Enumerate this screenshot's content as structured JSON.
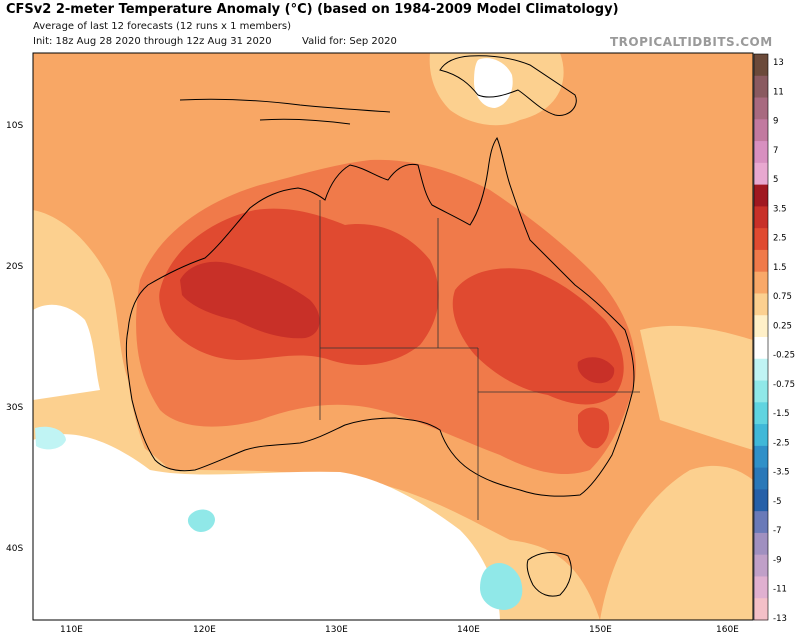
{
  "header": {
    "title": "CFSv2 2-meter Temperature Anomaly (°C) (based on 1984-2009 Model Climatology)",
    "subtitle": "Average of last 12 forecasts (12 runs x 1 members)",
    "init": "Init: 18z Aug 28 2020 through 12z Aug 31 2020",
    "valid": "Valid for: Sep 2020",
    "brand": "TROPICALTIDBITS.COM"
  },
  "axes": {
    "lat_labels": [
      "10S",
      "20S",
      "30S",
      "40S"
    ],
    "lon_labels": [
      "110E",
      "120E",
      "130E",
      "140E",
      "150E",
      "160E"
    ]
  },
  "colorbar": {
    "levels": [
      "13",
      "11",
      "9",
      "7",
      "5",
      "3.5",
      "2.5",
      "1.5",
      "0.75",
      "0.25",
      "-0.25",
      "-0.75",
      "-1.5",
      "-2.5",
      "-3.5",
      "-5",
      "-7",
      "-9",
      "-11",
      "-13"
    ],
    "colors": [
      "#6b4a3a",
      "#8a5a60",
      "#a86a80",
      "#c27aa0",
      "#d890c0",
      "#e8a8d0",
      "#a01820",
      "#c83028",
      "#e04a30",
      "#f07a4a",
      "#f9a868",
      "#fcd090",
      "#fff0c8",
      "#ffffff",
      "#c0f4f4",
      "#90e8e8",
      "#60d4e0",
      "#40b8d8",
      "#3090c8",
      "#2a78b8",
      "#2660a8",
      "#6a7ab8",
      "#a090c0",
      "#c0a0c8",
      "#e0b0d0",
      "#f4c0c8"
    ]
  },
  "map": {
    "palette": {
      "ocean_warm": "#f8a765",
      "ocean_mild": "#fcd08f",
      "land_warm": "#f07a4a",
      "land_hot": "#e04a30",
      "land_hottest": "#c83028",
      "neutral": "#ffffff",
      "cool": "#90e8e8"
    }
  }
}
